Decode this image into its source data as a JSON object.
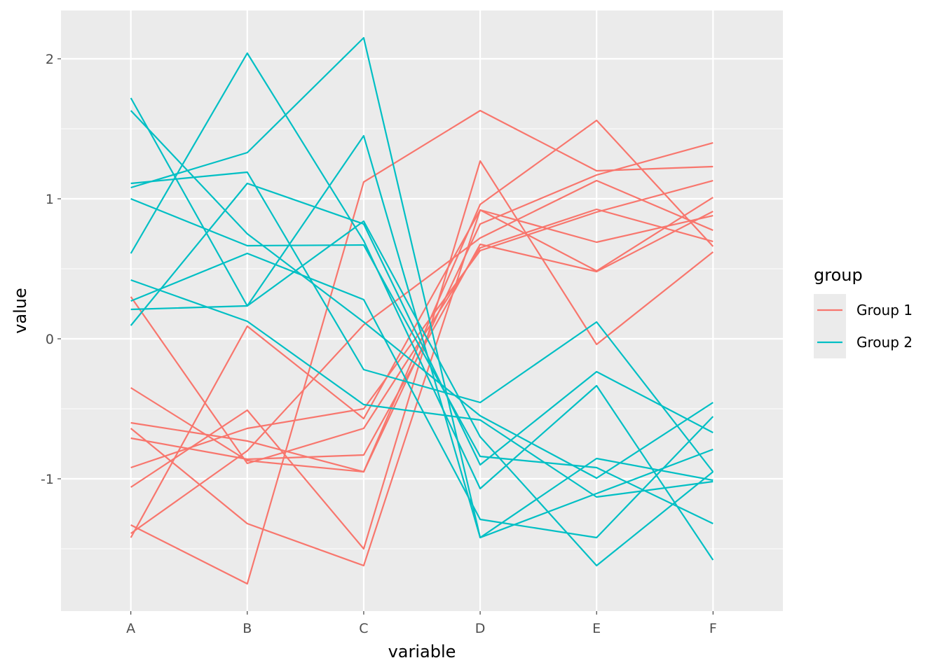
{
  "chart_data": {
    "type": "line",
    "subtype": "parallel-coordinates",
    "title": "",
    "xlabel": "variable",
    "ylabel": "value",
    "categories": [
      "A",
      "B",
      "C",
      "D",
      "E",
      "F"
    ],
    "ylim": [
      -1.945,
      2.345
    ],
    "yticks": [
      2,
      1,
      0,
      -1
    ],
    "ytick_labels": [
      "2",
      "1",
      "0",
      "-1"
    ],
    "grid": true,
    "legend": {
      "title": "group",
      "placement": "right",
      "entries": [
        "Group 1",
        "Group 2"
      ]
    },
    "colors": {
      "Group 1": "#F8766D",
      "Group 2": "#00BFC4",
      "panel": "#EBEBEB",
      "grid": "#FFFFFF"
    },
    "series": [
      {
        "name": "Group 1",
        "values": [
          0.3,
          -0.89,
          -0.64,
          0.65,
          0.925,
          0.695
        ]
      },
      {
        "name": "Group 1",
        "values": [
          -0.35,
          -0.87,
          -0.95,
          0.96,
          1.56,
          0.66
        ]
      },
      {
        "name": "Group 1",
        "values": [
          -0.6,
          -0.73,
          -0.95,
          0.82,
          1.17,
          1.4
        ]
      },
      {
        "name": "Group 1",
        "values": [
          -0.64,
          -1.32,
          -1.62,
          0.92,
          0.485,
          1.01
        ]
      },
      {
        "name": "Group 1",
        "values": [
          -0.71,
          -0.86,
          -0.83,
          0.675,
          0.48,
          0.91
        ]
      },
      {
        "name": "Group 1",
        "values": [
          -0.92,
          -0.64,
          -0.5,
          0.63,
          0.905,
          1.13
        ]
      },
      {
        "name": "Group 1",
        "values": [
          -1.06,
          -0.51,
          -1.5,
          1.27,
          -0.04,
          0.62
        ]
      },
      {
        "name": "Group 1",
        "values": [
          -1.33,
          -1.75,
          1.12,
          1.63,
          1.2,
          1.23
        ]
      },
      {
        "name": "Group 1",
        "values": [
          -1.39,
          -0.8,
          0.1,
          0.72,
          1.13,
          0.775
        ]
      },
      {
        "name": "Group 1",
        "values": [
          -1.42,
          0.09,
          -0.57,
          0.92,
          0.69,
          0.88
        ]
      },
      {
        "name": "Group 2",
        "values": [
          1.72,
          0.235,
          1.45,
          -1.42,
          -0.855,
          -1.01
        ]
      },
      {
        "name": "Group 2",
        "values": [
          1.63,
          0.75,
          0.12,
          -0.55,
          -0.995,
          -0.455
        ]
      },
      {
        "name": "Group 2",
        "values": [
          1.11,
          1.19,
          -0.22,
          -0.455,
          0.12,
          -0.95
        ]
      },
      {
        "name": "Group 2",
        "values": [
          1.08,
          1.33,
          2.15,
          -1.42,
          -1.105,
          -0.79
        ]
      },
      {
        "name": "Group 2",
        "values": [
          1.0,
          0.665,
          0.67,
          -0.84,
          -0.92,
          -1.32
        ]
      },
      {
        "name": "Group 2",
        "values": [
          0.61,
          2.04,
          0.7,
          -1.07,
          -0.335,
          -1.58
        ]
      },
      {
        "name": "Group 2",
        "values": [
          0.42,
          0.125,
          -0.47,
          -0.58,
          -1.13,
          -1.02
        ]
      },
      {
        "name": "Group 2",
        "values": [
          0.27,
          0.61,
          0.28,
          -1.29,
          -1.42,
          -0.555
        ]
      },
      {
        "name": "Group 2",
        "values": [
          0.21,
          0.235,
          0.84,
          -0.7,
          -1.62,
          -0.95
        ]
      },
      {
        "name": "Group 2",
        "values": [
          0.095,
          1.11,
          0.82,
          -0.9,
          -0.235,
          -0.67
        ]
      }
    ]
  }
}
